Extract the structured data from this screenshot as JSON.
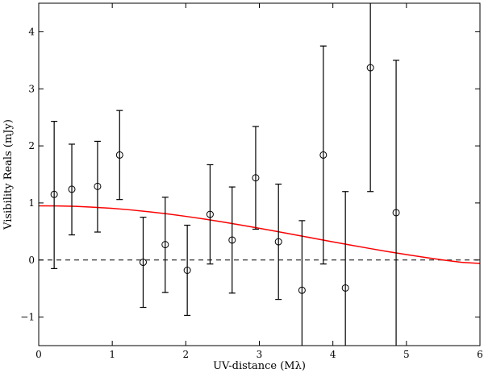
{
  "chart_data": {
    "type": "scatter",
    "title": "",
    "xlabel": "UV-distance (Mλ)",
    "ylabel": "Visibility Reals (mJy)",
    "xlim": [
      0,
      6
    ],
    "ylim": [
      -1.5,
      4.5
    ],
    "grid": false,
    "x_ticks": [
      0,
      1,
      2,
      3,
      4,
      5,
      6
    ],
    "y_ticks": [
      -1,
      0,
      1,
      2,
      3,
      4
    ],
    "x_tick_labels": [
      "0",
      "1",
      "2",
      "3",
      "4",
      "5",
      "6"
    ],
    "y_tick_labels": [
      "−1",
      "0",
      "1",
      "2",
      "3",
      "4"
    ],
    "points": [
      {
        "x": 0.21,
        "y": 1.15,
        "lo": -0.15,
        "hi": 2.43
      },
      {
        "x": 0.45,
        "y": 1.24,
        "lo": 0.44,
        "hi": 2.03
      },
      {
        "x": 0.8,
        "y": 1.29,
        "lo": 0.49,
        "hi": 2.08
      },
      {
        "x": 1.1,
        "y": 1.84,
        "lo": 1.06,
        "hi": 2.62
      },
      {
        "x": 1.42,
        "y": -0.04,
        "lo": -0.83,
        "hi": 0.75
      },
      {
        "x": 1.72,
        "y": 0.27,
        "lo": -0.57,
        "hi": 1.1
      },
      {
        "x": 2.02,
        "y": -0.18,
        "lo": -0.97,
        "hi": 0.61
      },
      {
        "x": 2.33,
        "y": 0.8,
        "lo": -0.07,
        "hi": 1.67
      },
      {
        "x": 2.63,
        "y": 0.35,
        "lo": -0.58,
        "hi": 1.28
      },
      {
        "x": 2.95,
        "y": 1.44,
        "lo": 0.54,
        "hi": 2.34
      },
      {
        "x": 3.26,
        "y": 0.32,
        "lo": -0.69,
        "hi": 1.33
      },
      {
        "x": 3.58,
        "y": -0.53,
        "lo": -1.75,
        "hi": 0.69
      },
      {
        "x": 3.87,
        "y": 1.84,
        "lo": -0.07,
        "hi": 3.75
      },
      {
        "x": 4.17,
        "y": -0.49,
        "lo": -2.18,
        "hi": 1.2
      },
      {
        "x": 4.51,
        "y": 3.37,
        "lo": 1.2,
        "hi": 5.5
      },
      {
        "x": 4.86,
        "y": 0.83,
        "lo": -1.84,
        "hi": 3.5
      }
    ],
    "model_curve": {
      "color": "#ff0000",
      "x": [
        0,
        0.25,
        0.5,
        0.75,
        1.0,
        1.25,
        1.5,
        1.75,
        2.0,
        2.25,
        2.5,
        2.75,
        3.0,
        3.25,
        3.5,
        3.75,
        4.0,
        4.25,
        4.5,
        4.75,
        5.0,
        5.25,
        5.5,
        5.75,
        6.0
      ],
      "y": [
        0.95,
        0.948,
        0.94,
        0.925,
        0.905,
        0.878,
        0.846,
        0.808,
        0.765,
        0.718,
        0.667,
        0.613,
        0.556,
        0.497,
        0.438,
        0.378,
        0.318,
        0.259,
        0.202,
        0.147,
        0.095,
        0.046,
        0.0,
        -0.04,
        -0.06
      ]
    },
    "reference_line": {
      "y": 0,
      "style": "dashed",
      "color": "#000000"
    }
  }
}
